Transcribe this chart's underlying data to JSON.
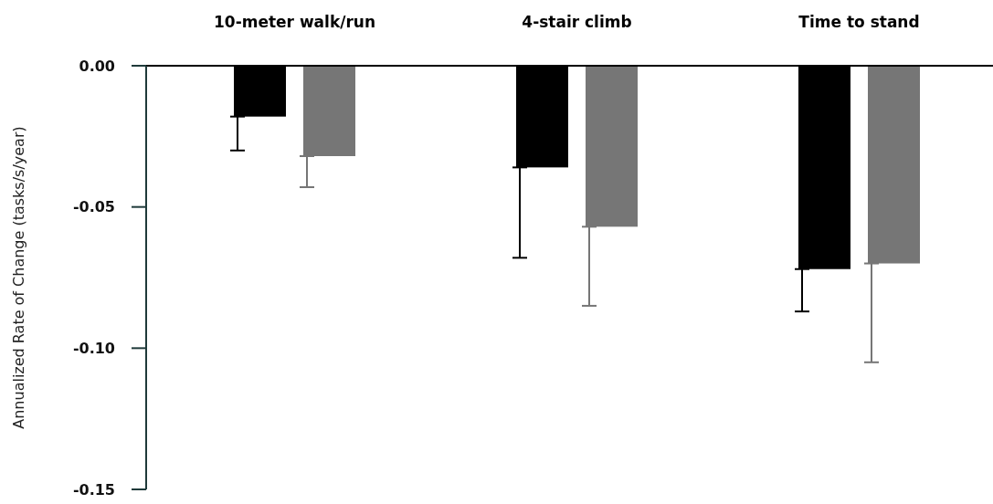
{
  "chart_data": {
    "type": "bar",
    "ylabel": "Annualized Rate of Change (tasks/s/year)",
    "categories": [
      "10-meter walk/run",
      "4-stair climb",
      "Time to stand"
    ],
    "series": [
      {
        "color": "#000000",
        "values": [
          -0.018,
          -0.036,
          -0.072
        ],
        "errors": [
          [
            -0.03,
            -0.018
          ],
          [
            -0.068,
            -0.036
          ],
          [
            -0.087,
            -0.072
          ]
        ]
      },
      {
        "color": "#767676",
        "values": [
          -0.032,
          -0.057,
          -0.07
        ],
        "errors": [
          [
            -0.043,
            -0.032
          ],
          [
            -0.085,
            -0.057
          ],
          [
            -0.105,
            -0.07
          ]
        ]
      }
    ],
    "ylim": [
      -0.15,
      0
    ],
    "yticks": [
      {
        "value": 0,
        "label": "0.00"
      },
      {
        "value": -0.05,
        "label": "-0.05"
      },
      {
        "value": -0.1,
        "label": "-0.10"
      },
      {
        "value": -0.15,
        "label": "-0.15"
      }
    ]
  }
}
